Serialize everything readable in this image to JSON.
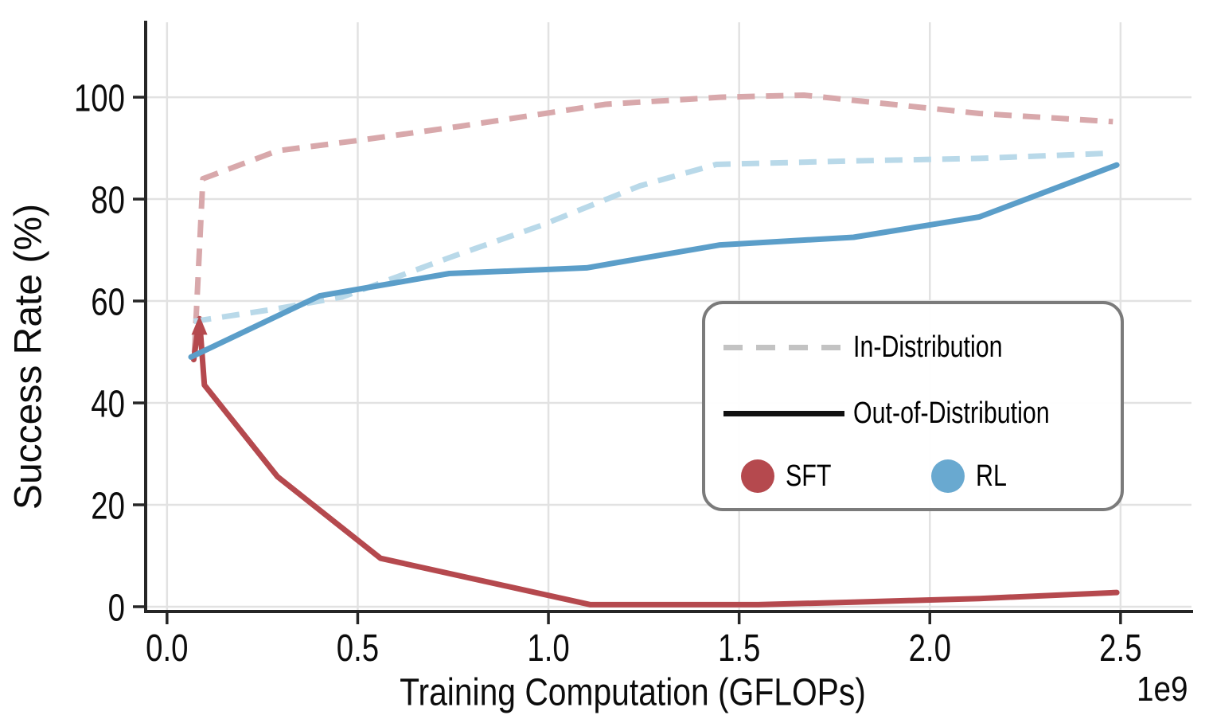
{
  "chart_data": {
    "type": "line",
    "title": "",
    "xlabel": "Training Computation (GFLOPs)",
    "ylabel": "Success Rate (%)",
    "x_axis_multiplier": "1e9",
    "xlim": [
      -0.056,
      2.686
    ],
    "ylim": [
      -0.94,
      114.7
    ],
    "xticks": [
      0.0,
      0.5,
      1.0,
      1.5,
      2.0,
      2.5
    ],
    "xtick_labels": [
      "0.0",
      "0.5",
      "1.0",
      "1.5",
      "2.0",
      "2.5"
    ],
    "yticks": [
      0,
      20,
      40,
      60,
      80,
      100
    ],
    "ytick_labels": [
      "0",
      "20",
      "40",
      "60",
      "80",
      "100"
    ],
    "grid": true,
    "grid_color": "#e2e2e2",
    "spine_color": "#262626",
    "legend": {
      "position": "center right",
      "in_distribution_label": "In-Distribution",
      "out_of_distribution_label": "Out-of-Distribution",
      "sft_label": "SFT",
      "rl_label": "RL",
      "sft_color": "#b5494e",
      "rl_color": "#69a9d0",
      "dashed_sample_color": "#c3c3c3",
      "solid_sample_color": "#111111"
    },
    "series": [
      {
        "name": "SFT In-Distribution",
        "method": "SFT",
        "distribution": "In-Distribution",
        "style": "dashed",
        "color": "#d8a8ab",
        "points": [
          [
            0.072,
            50
          ],
          [
            0.094,
            84
          ],
          [
            0.29,
            89.5
          ],
          [
            0.5,
            91.5
          ],
          [
            0.77,
            94.3
          ],
          [
            1.15,
            98.6
          ],
          [
            1.45,
            100
          ],
          [
            1.67,
            100.4
          ],
          [
            2.13,
            96.8
          ],
          [
            2.48,
            95.2
          ]
        ]
      },
      {
        "name": "SFT Out-of-Distribution",
        "method": "SFT",
        "distribution": "Out-of-Distribution",
        "style": "solid",
        "color": "#b5494e",
        "points": [
          [
            0.07,
            48.5
          ],
          [
            0.085,
            56.5
          ],
          [
            0.098,
            43.5
          ],
          [
            0.29,
            25.5
          ],
          [
            0.56,
            9.5
          ],
          [
            1.11,
            0.4
          ],
          [
            1.55,
            0.4
          ],
          [
            1.8,
            0.9
          ],
          [
            2.13,
            1.6
          ],
          [
            2.49,
            2.8
          ]
        ]
      },
      {
        "name": "RL In-Distribution",
        "method": "RL",
        "distribution": "In-Distribution",
        "style": "dashed",
        "color": "#b9d9e9",
        "points": [
          [
            0.07,
            56
          ],
          [
            0.29,
            58.5
          ],
          [
            0.46,
            60.8
          ],
          [
            0.74,
            68.5
          ],
          [
            0.98,
            74.8
          ],
          [
            1.24,
            82.6
          ],
          [
            1.44,
            86.8
          ],
          [
            1.8,
            87.5
          ],
          [
            2.13,
            88
          ],
          [
            2.47,
            89
          ]
        ]
      },
      {
        "name": "RL Out-of-Distribution",
        "method": "RL",
        "distribution": "Out-of-Distribution",
        "style": "solid",
        "color": "#5b9ec9",
        "points": [
          [
            0.063,
            49
          ],
          [
            0.4,
            61
          ],
          [
            0.74,
            65.4
          ],
          [
            1.1,
            66.5
          ],
          [
            1.45,
            71
          ],
          [
            1.8,
            72.5
          ],
          [
            2.13,
            76.5
          ],
          [
            2.49,
            86.7
          ]
        ]
      }
    ],
    "annotation": {
      "type": "arrowhead-up",
      "x": 0.085,
      "y": 56.5,
      "color": "#b5494e"
    }
  }
}
